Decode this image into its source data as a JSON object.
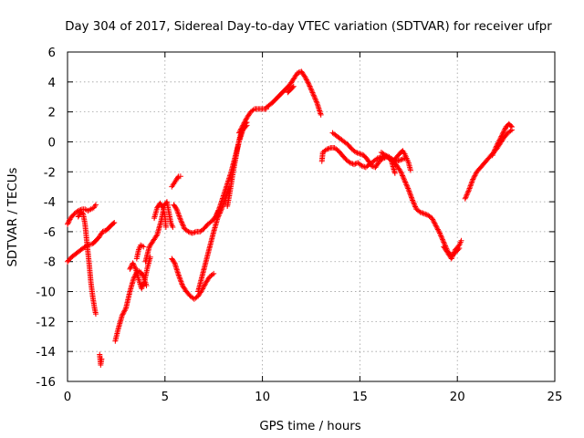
{
  "chart_data": {
    "type": "scatter",
    "title": "Day 304 of 2017, Sidereal Day-to-day VTEC variation (SDTVAR) for receiver ufpr",
    "xlabel": "GPS time / hours",
    "ylabel": "SDTVAR / TECUs",
    "xlim": [
      0,
      25
    ],
    "ylim": [
      -16,
      6
    ],
    "x_ticks": [
      0,
      5,
      10,
      15,
      20,
      25
    ],
    "y_ticks": [
      -16,
      -14,
      -12,
      -10,
      -8,
      -6,
      -4,
      -2,
      0,
      2,
      4,
      6
    ],
    "x_tick_labels": [
      "0",
      "5",
      "10",
      "15",
      "20",
      "25"
    ],
    "y_tick_labels": [
      "-16",
      "-14",
      "-12",
      "-10",
      "-8",
      "-6",
      "-4",
      "-2",
      "0",
      "2",
      "4",
      "6"
    ],
    "grid": true,
    "marker": "+",
    "series_color": "#ff0000",
    "segments": [
      {
        "x": [
          0.0,
          0.15,
          0.35,
          0.55,
          0.75,
          0.9,
          1.05,
          1.2,
          1.35,
          1.45
        ],
        "y": [
          -5.5,
          -5.1,
          -4.8,
          -4.6,
          -4.5,
          -4.5,
          -4.6,
          -4.5,
          -4.4,
          -4.2
        ]
      },
      {
        "x": [
          0.0,
          0.2,
          0.5,
          0.8,
          1.05,
          1.3,
          1.6,
          1.8,
          2.0,
          2.15,
          2.3,
          2.4
        ],
        "y": [
          -8.0,
          -7.7,
          -7.4,
          -7.1,
          -6.9,
          -6.8,
          -6.4,
          -6.0,
          -5.9,
          -5.7,
          -5.5,
          -5.4
        ]
      },
      {
        "x": [
          0.55,
          0.7,
          0.8,
          0.9,
          1.0,
          1.1,
          1.2,
          1.3,
          1.4,
          1.45
        ],
        "y": [
          -5.0,
          -4.7,
          -4.8,
          -5.5,
          -6.8,
          -8.0,
          -9.4,
          -10.4,
          -11.2,
          -11.5
        ]
      },
      {
        "x": [
          1.65,
          1.68,
          1.7,
          1.75
        ],
        "y": [
          -14.2,
          -14.6,
          -14.9,
          -14.5
        ]
      },
      {
        "x": [
          2.45,
          2.6,
          2.8,
          3.0,
          3.2,
          3.4,
          3.6,
          3.75,
          3.9,
          4.05
        ],
        "y": [
          -13.3,
          -12.5,
          -11.6,
          -11.1,
          -10.0,
          -9.1,
          -8.6,
          -8.7,
          -9.0,
          -9.6
        ]
      },
      {
        "x": [
          3.2,
          3.35,
          3.5,
          3.65,
          3.8,
          3.95,
          4.1,
          4.25
        ],
        "y": [
          -8.5,
          -8.1,
          -8.5,
          -9.2,
          -9.8,
          -9.3,
          -8.4,
          -7.7
        ]
      },
      {
        "x": [
          3.55,
          3.65,
          3.75,
          3.9
        ],
        "y": [
          -7.8,
          -7.2,
          -6.9,
          -7.0
        ]
      },
      {
        "x": [
          4.0,
          4.2,
          4.4,
          4.6,
          4.8,
          4.95,
          5.1,
          5.2,
          5.3,
          5.4
        ],
        "y": [
          -8.0,
          -7.0,
          -6.6,
          -6.2,
          -5.3,
          -4.3,
          -4.0,
          -4.7,
          -5.4,
          -5.7
        ]
      },
      {
        "x": [
          4.45,
          4.6,
          4.75,
          4.9,
          5.0,
          5.05
        ],
        "y": [
          -5.1,
          -4.4,
          -4.1,
          -4.4,
          -5.0,
          -5.7
        ]
      },
      {
        "x": [
          5.35,
          5.45,
          5.55,
          5.7,
          5.8
        ],
        "y": [
          -3.0,
          -2.8,
          -2.6,
          -2.3,
          -2.3
        ]
      },
      {
        "x": [
          5.45,
          5.6,
          5.8,
          6.0,
          6.2,
          6.4,
          6.6,
          6.8,
          7.0,
          7.2,
          7.4,
          7.6,
          7.75
        ],
        "y": [
          -4.2,
          -4.5,
          -5.2,
          -5.8,
          -6.0,
          -6.1,
          -6.0,
          -6.0,
          -5.8,
          -5.5,
          -5.3,
          -5.0,
          -4.6
        ]
      },
      {
        "x": [
          5.35,
          5.5,
          5.7,
          5.9,
          6.1,
          6.3,
          6.5,
          6.7,
          6.9,
          7.1,
          7.3,
          7.5
        ],
        "y": [
          -7.8,
          -8.1,
          -8.9,
          -9.6,
          -10.0,
          -10.3,
          -10.5,
          -10.3,
          -9.9,
          -9.4,
          -9.0,
          -8.8
        ]
      },
      {
        "x": [
          6.7,
          6.9,
          7.1,
          7.3,
          7.5,
          7.7,
          7.9,
          8.1,
          8.3
        ],
        "y": [
          -10.0,
          -9.0,
          -8.0,
          -7.0,
          -6.0,
          -5.1,
          -4.5,
          -3.8,
          -3.0
        ]
      },
      {
        "x": [
          7.6,
          7.8,
          8.0,
          8.2,
          8.4,
          8.6,
          8.8,
          9.0,
          9.2
        ],
        "y": [
          -5.0,
          -4.4,
          -3.6,
          -2.8,
          -2.0,
          -1.0,
          0.0,
          0.8,
          1.1
        ]
      },
      {
        "x": [
          8.2,
          8.3,
          8.4,
          8.5,
          8.6,
          8.7,
          8.8,
          8.9,
          9.0,
          9.1,
          9.2
        ],
        "y": [
          -4.3,
          -3.6,
          -2.8,
          -2.0,
          -1.3,
          -0.6,
          0.1,
          0.6,
          0.9,
          1.2,
          1.3
        ]
      },
      {
        "x": [
          8.8,
          9.0,
          9.2,
          9.4,
          9.6,
          9.8,
          10.0,
          10.2
        ],
        "y": [
          0.6,
          1.1,
          1.6,
          2.0,
          2.2,
          2.2,
          2.2,
          2.2
        ]
      },
      {
        "x": [
          10.2,
          10.5,
          10.8,
          11.1,
          11.4,
          11.6,
          11.8,
          12.0,
          12.2,
          12.4,
          12.6,
          12.8,
          13.0
        ],
        "y": [
          2.3,
          2.6,
          3.0,
          3.4,
          3.8,
          4.2,
          4.6,
          4.7,
          4.3,
          3.8,
          3.2,
          2.6,
          1.8
        ]
      },
      {
        "x": [
          11.3,
          11.45,
          11.6
        ],
        "y": [
          3.3,
          3.5,
          3.7
        ]
      },
      {
        "x": [
          13.05,
          13.1
        ],
        "y": [
          -1.3,
          -0.7
        ]
      },
      {
        "x": [
          13.1,
          13.3,
          13.5,
          13.7,
          13.9,
          14.1,
          14.3,
          14.5,
          14.7,
          14.9,
          15.1,
          15.3,
          15.5,
          15.7,
          15.9,
          16.1,
          16.3,
          16.5,
          16.7,
          16.9,
          17.1,
          17.3
        ],
        "y": [
          -0.7,
          -0.5,
          -0.4,
          -0.4,
          -0.6,
          -0.9,
          -1.2,
          -1.4,
          -1.5,
          -1.4,
          -1.6,
          -1.7,
          -1.5,
          -1.3,
          -1.1,
          -1.0,
          -0.9,
          -1.0,
          -1.2,
          -1.3,
          -1.2,
          -1.1
        ]
      },
      {
        "x": [
          13.6,
          13.8,
          14.0,
          14.2,
          14.4,
          14.6,
          14.8,
          15.0,
          15.2,
          15.4,
          15.6,
          15.8,
          16.0,
          16.2,
          16.4,
          16.6,
          16.8
        ],
        "y": [
          0.6,
          0.4,
          0.2,
          0.0,
          -0.2,
          -0.5,
          -0.7,
          -0.8,
          -0.9,
          -1.2,
          -1.6,
          -1.7,
          -1.3,
          -1.1,
          -1.0,
          -1.2,
          -2.1
        ]
      },
      {
        "x": [
          16.1,
          16.3,
          16.5,
          16.7,
          16.9,
          17.1,
          17.2,
          17.3,
          17.4,
          17.5,
          17.6
        ],
        "y": [
          -0.7,
          -0.9,
          -1.1,
          -1.3,
          -1.0,
          -0.7,
          -0.6,
          -0.8,
          -1.1,
          -1.4,
          -1.9
        ]
      },
      {
        "x": [
          16.7,
          16.9,
          17.1,
          17.3,
          17.5,
          17.7,
          17.9,
          18.1,
          18.3,
          18.5,
          18.7,
          18.9,
          19.1,
          19.3,
          19.5,
          19.7,
          19.9,
          20.1
        ],
        "y": [
          -1.3,
          -1.6,
          -2.0,
          -2.6,
          -3.2,
          -3.9,
          -4.5,
          -4.7,
          -4.8,
          -4.9,
          -5.1,
          -5.6,
          -6.1,
          -6.7,
          -7.3,
          -7.6,
          -7.4,
          -7.1
        ]
      },
      {
        "x": [
          19.3,
          19.5,
          19.7,
          19.9,
          20.1,
          20.2
        ],
        "y": [
          -7.0,
          -7.4,
          -7.8,
          -7.2,
          -6.9,
          -6.6
        ]
      },
      {
        "x": [
          20.4,
          20.6,
          20.8,
          21.0,
          21.2,
          21.4,
          21.6,
          21.8,
          22.0,
          22.2,
          22.4,
          22.6,
          22.8
        ],
        "y": [
          -3.8,
          -3.2,
          -2.5,
          -2.0,
          -1.7,
          -1.4,
          -1.1,
          -0.8,
          -0.5,
          -0.1,
          0.3,
          0.6,
          0.8
        ]
      },
      {
        "x": [
          21.8,
          22.0,
          22.2,
          22.35,
          22.5,
          22.65,
          22.8
        ],
        "y": [
          -0.9,
          -0.3,
          0.2,
          0.6,
          1.0,
          1.2,
          1.0
        ]
      }
    ]
  }
}
